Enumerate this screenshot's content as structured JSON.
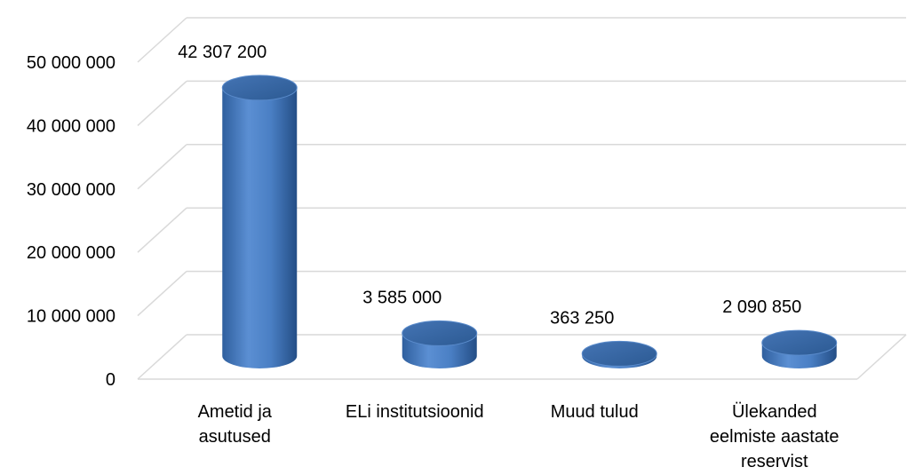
{
  "chart_data": {
    "type": "bar",
    "style": "3d-cylinder",
    "categories": [
      "Ametid ja asutused",
      "ELi institutsioonid",
      "Muud tulud",
      "Ülekanded eelmiste aastate reservist"
    ],
    "category_lines": [
      [
        "Ametid ja",
        "asutused"
      ],
      [
        "ELi institutsioonid"
      ],
      [
        "Muud tulud"
      ],
      [
        "Ülekanded",
        "eelmiste aastate",
        "reservist"
      ]
    ],
    "values": [
      42307200,
      3585000,
      363250,
      2090850
    ],
    "data_labels": [
      "42 307 200",
      "3 585 000",
      "363 250",
      "2 090 850"
    ],
    "yticks": [
      0,
      10000000,
      20000000,
      30000000,
      40000000,
      50000000
    ],
    "ytick_labels": [
      "0",
      "10 000 000",
      "20 000 000",
      "30 000 000",
      "40 000 000",
      "50 000 000"
    ],
    "ylim": [
      0,
      50000000
    ],
    "grid": true,
    "legend": "none",
    "colors": {
      "bar": "#4F81BD",
      "bar_dark": "#2C5A93",
      "bar_light": "#6F9BD4",
      "grid": "#D9D9D9"
    }
  }
}
